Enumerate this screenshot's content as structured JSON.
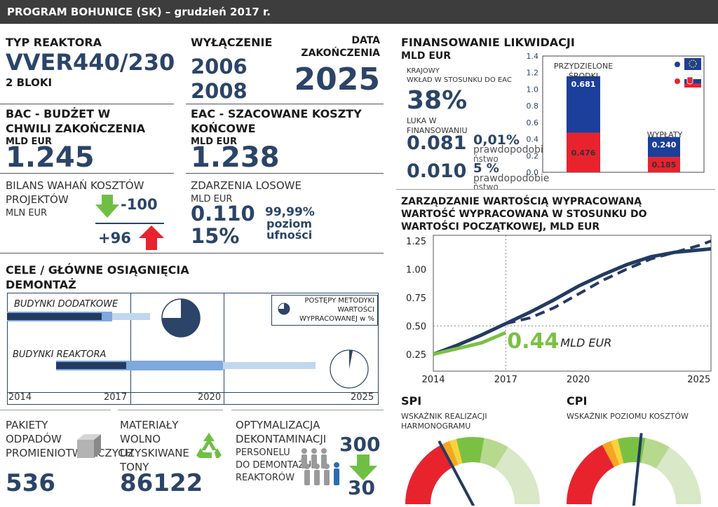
{
  "header": {
    "title": "PROGRAM BOHUNICE (SK) – grudzień 2017 r."
  },
  "reactor": {
    "label": "TYP REAKTORA",
    "type": "VVER440/230",
    "units": "2 BLOKI"
  },
  "shutdown": {
    "label": "WYŁĄCZENIE",
    "year1": "2006",
    "year2": "2008"
  },
  "end": {
    "label_line1": "DATA",
    "label_line2": "ZAKOŃCZENIA",
    "year": "2025"
  },
  "bac": {
    "label_line1": "BAC - BUDŻET W",
    "label_line2": "CHWILI ZAKOŃCZENIA",
    "unit": "MLD EUR",
    "value": "1.245"
  },
  "eac": {
    "label_line1": "EAC - SZACOWANE KOSZTY",
    "label_line2": "KOŃCOWE",
    "unit": "MLD EUR",
    "value": "1.238"
  },
  "variance": {
    "label_line1": "BILANS WAHAŃ KOSZTÓW",
    "label_line2": "PROJEKTÓW",
    "unit": "MLN EUR",
    "down": "-100",
    "up": "+96"
  },
  "risk": {
    "label": "ZDARZENIA LOSOWE",
    "unit": "MLD EUR",
    "value": "0.110",
    "percent": "15%",
    "conf_line1": "99,99%",
    "conf_line2": "poziom",
    "conf_line3": "ufności"
  },
  "goals": {
    "title_line1": "CELE / GŁÓWNE OSIĄGNIĘCIA",
    "title_line2": "DEMONTAŻ",
    "row1": "BUDYNKI DODATKOWE",
    "row2": "BUDYNKI REAKTORA",
    "legend_line1": "POSTĘPY METODYKI",
    "legend_line2": "WARTOŚCI",
    "legend_line3": "WYPRACOWANEJ w %",
    "axis": [
      "2014",
      "2017",
      "2020",
      "2025"
    ],
    "row1_progress": 0.75,
    "row2_progress": 0.03
  },
  "waste": {
    "label_line1": "PAKIETY",
    "label_line2": "ODPADÓW",
    "label_line3": "PROMIENIOTWÓRCZYCH",
    "value": "536",
    "icon": "box-icon"
  },
  "materials": {
    "label_line1": "MATERIAŁY",
    "label_line2": "WOLNO",
    "label_line3": "UZYSKIWANE",
    "label_line4": "TONY",
    "value": "86122",
    "icon": "recycle-icon"
  },
  "optim": {
    "label_line1": "OPTYMALIZACJA",
    "label_line2": "DEKONTAMINACJI",
    "sub_line1": "PERSONELU",
    "sub_line2": "DO DEMONTAŻU",
    "sub_line3": "REAKTORÓW",
    "from": "300",
    "to": "30",
    "icon": "people-icon"
  },
  "finance": {
    "title": "FINANSOWANIE LIKWIDACJI",
    "unit": "MLD EUR",
    "national_line1": "KRAJOWY",
    "national_line2": "WKŁAD W STOSUNKU DO EAC",
    "national_value": "38%",
    "gap_line1": "LUKA W",
    "gap_line2": "FINANSOWANIU",
    "gap1_value": "0.081",
    "gap1_pct": "0,01%",
    "gap1_prob_line1": "prawdopodobie",
    "gap1_prob_line2": "ństwo",
    "gap2_value": "0.010",
    "gap2_pct": "5 %",
    "gap2_prob_line1": "prawdopodobie",
    "gap2_prob_line2": "ństwo",
    "bar1_label_line1": "PRZYDZIELONE",
    "bar1_label_line2": "ŚRODKI",
    "bar2_label": "WYPŁATY",
    "yticks": [
      "1.4",
      "1.2",
      "1.0",
      "0.8",
      "0.6",
      "0.4",
      "0.2",
      "0.0"
    ],
    "bar1_eu": "0.681",
    "bar1_sk": "0.476",
    "bar2_eu": "0.240",
    "bar2_sk": "0.185",
    "eu_color": "#1b3f9a",
    "sk_color": "#e8232e"
  },
  "ev": {
    "title_line1": "ZARZĄDZANIE WARTOŚCIĄ WYPRACOWANĄ",
    "title_line2": "WARTOŚĆ WYPRACOWANA W STOSUNKU DO",
    "title_line3": "WARTOŚCI POCZĄTKOWEJ, MLD EUR",
    "yticks": [
      "1.25",
      "1.00",
      "0.75",
      "0.50",
      "0.25"
    ],
    "xticks": [
      "2014",
      "2017",
      "2020",
      "2025"
    ],
    "value": "0.44",
    "value_unit": "MLD EUR"
  },
  "chart_data": {
    "type": "line",
    "x": [
      2014,
      2015,
      2016,
      2017,
      2018,
      2019,
      2020,
      2021,
      2022,
      2023,
      2024,
      2025,
      2025.5
    ],
    "series": [
      {
        "values": [
          0.25,
          0.33,
          0.42,
          0.52,
          0.62,
          0.73,
          0.85,
          0.95,
          1.04,
          1.11,
          1.15,
          1.17,
          1.18
        ]
      },
      {
        "values": [
          null,
          null,
          null,
          0.52,
          0.57,
          0.66,
          0.78,
          0.9,
          1.0,
          1.09,
          1.15,
          1.21,
          1.25
        ]
      },
      {
        "values": [
          0.25,
          0.3,
          0.35,
          0.44,
          null,
          null,
          null,
          null,
          null,
          null,
          null,
          null,
          null
        ]
      }
    ],
    "ylim": [
      0.1,
      1.3
    ],
    "xlim": [
      2014,
      2025.5
    ]
  },
  "spi": {
    "title": "SPI",
    "sub_line1": "WSKAŹNIK REALIZACJI",
    "sub_line2": "HARMONOGRAMU"
  },
  "cpi": {
    "title": "CPI",
    "sub": "WSKAŹNIK POZIOMU KOSZTÓW"
  }
}
